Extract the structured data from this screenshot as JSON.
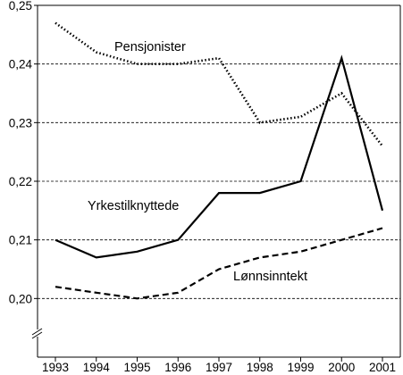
{
  "chart_data": {
    "type": "line",
    "x": [
      "1993",
      "1994",
      "1995",
      "1996",
      "1997",
      "1998",
      "1999",
      "2000",
      "2001"
    ],
    "ylim": [
      0.19,
      0.25
    ],
    "y_ticks": [
      "0,20",
      "0,21",
      "0,22",
      "0,23",
      "0,24",
      "0,25"
    ],
    "y_tick_values": [
      0.2,
      0.21,
      0.22,
      0.23,
      0.24,
      0.25
    ],
    "grid": true,
    "axis_break": true,
    "series": [
      {
        "name": "Pensjonister",
        "style": "dotted",
        "color": "#000000",
        "values": [
          0.247,
          0.242,
          0.24,
          0.24,
          0.241,
          0.23,
          0.231,
          0.235,
          0.226
        ]
      },
      {
        "name": "Yrkestilknyttede",
        "style": "solid",
        "color": "#000000",
        "values": [
          0.21,
          0.207,
          0.208,
          0.21,
          0.218,
          0.218,
          0.22,
          0.241,
          0.215
        ]
      },
      {
        "name": "Lønnsinntekt",
        "style": "dashed",
        "color": "#000000",
        "values": [
          0.202,
          0.201,
          0.2,
          0.201,
          0.205,
          0.207,
          0.208,
          0.21,
          0.212
        ]
      }
    ]
  }
}
